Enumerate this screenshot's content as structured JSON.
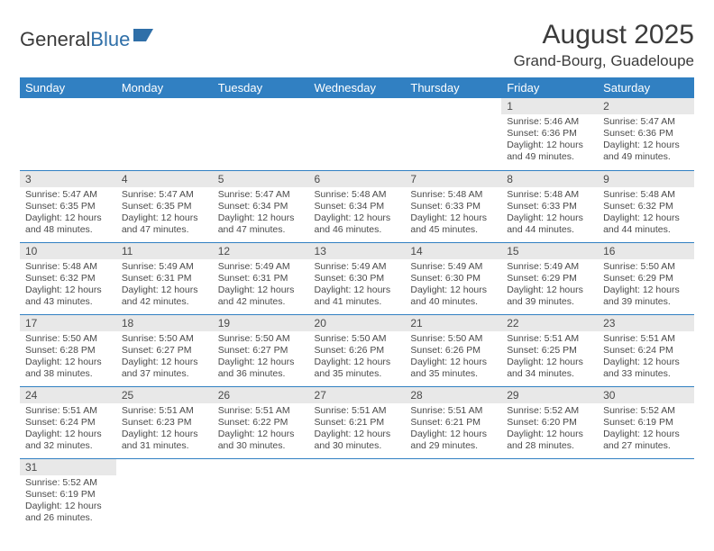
{
  "logo": {
    "text1": "General",
    "text2": "Blue"
  },
  "title": "August 2025",
  "location": "Grand-Bourg, Guadeloupe",
  "colors": {
    "header_bg": "#3180c2",
    "header_text": "#ffffff",
    "daynum_bg": "#e8e8e8",
    "cell_border": "#3180c2",
    "text": "#4a4a4a",
    "logo_blue": "#2f6fa8"
  },
  "columns": [
    "Sunday",
    "Monday",
    "Tuesday",
    "Wednesday",
    "Thursday",
    "Friday",
    "Saturday"
  ],
  "weeks": [
    [
      null,
      null,
      null,
      null,
      null,
      {
        "n": "1",
        "sunrise": "5:46 AM",
        "sunset": "6:36 PM",
        "dl": "12 hours and 49 minutes."
      },
      {
        "n": "2",
        "sunrise": "5:47 AM",
        "sunset": "6:36 PM",
        "dl": "12 hours and 49 minutes."
      }
    ],
    [
      {
        "n": "3",
        "sunrise": "5:47 AM",
        "sunset": "6:35 PM",
        "dl": "12 hours and 48 minutes."
      },
      {
        "n": "4",
        "sunrise": "5:47 AM",
        "sunset": "6:35 PM",
        "dl": "12 hours and 47 minutes."
      },
      {
        "n": "5",
        "sunrise": "5:47 AM",
        "sunset": "6:34 PM",
        "dl": "12 hours and 47 minutes."
      },
      {
        "n": "6",
        "sunrise": "5:48 AM",
        "sunset": "6:34 PM",
        "dl": "12 hours and 46 minutes."
      },
      {
        "n": "7",
        "sunrise": "5:48 AM",
        "sunset": "6:33 PM",
        "dl": "12 hours and 45 minutes."
      },
      {
        "n": "8",
        "sunrise": "5:48 AM",
        "sunset": "6:33 PM",
        "dl": "12 hours and 44 minutes."
      },
      {
        "n": "9",
        "sunrise": "5:48 AM",
        "sunset": "6:32 PM",
        "dl": "12 hours and 44 minutes."
      }
    ],
    [
      {
        "n": "10",
        "sunrise": "5:48 AM",
        "sunset": "6:32 PM",
        "dl": "12 hours and 43 minutes."
      },
      {
        "n": "11",
        "sunrise": "5:49 AM",
        "sunset": "6:31 PM",
        "dl": "12 hours and 42 minutes."
      },
      {
        "n": "12",
        "sunrise": "5:49 AM",
        "sunset": "6:31 PM",
        "dl": "12 hours and 42 minutes."
      },
      {
        "n": "13",
        "sunrise": "5:49 AM",
        "sunset": "6:30 PM",
        "dl": "12 hours and 41 minutes."
      },
      {
        "n": "14",
        "sunrise": "5:49 AM",
        "sunset": "6:30 PM",
        "dl": "12 hours and 40 minutes."
      },
      {
        "n": "15",
        "sunrise": "5:49 AM",
        "sunset": "6:29 PM",
        "dl": "12 hours and 39 minutes."
      },
      {
        "n": "16",
        "sunrise": "5:50 AM",
        "sunset": "6:29 PM",
        "dl": "12 hours and 39 minutes."
      }
    ],
    [
      {
        "n": "17",
        "sunrise": "5:50 AM",
        "sunset": "6:28 PM",
        "dl": "12 hours and 38 minutes."
      },
      {
        "n": "18",
        "sunrise": "5:50 AM",
        "sunset": "6:27 PM",
        "dl": "12 hours and 37 minutes."
      },
      {
        "n": "19",
        "sunrise": "5:50 AM",
        "sunset": "6:27 PM",
        "dl": "12 hours and 36 minutes."
      },
      {
        "n": "20",
        "sunrise": "5:50 AM",
        "sunset": "6:26 PM",
        "dl": "12 hours and 35 minutes."
      },
      {
        "n": "21",
        "sunrise": "5:50 AM",
        "sunset": "6:26 PM",
        "dl": "12 hours and 35 minutes."
      },
      {
        "n": "22",
        "sunrise": "5:51 AM",
        "sunset": "6:25 PM",
        "dl": "12 hours and 34 minutes."
      },
      {
        "n": "23",
        "sunrise": "5:51 AM",
        "sunset": "6:24 PM",
        "dl": "12 hours and 33 minutes."
      }
    ],
    [
      {
        "n": "24",
        "sunrise": "5:51 AM",
        "sunset": "6:24 PM",
        "dl": "12 hours and 32 minutes."
      },
      {
        "n": "25",
        "sunrise": "5:51 AM",
        "sunset": "6:23 PM",
        "dl": "12 hours and 31 minutes."
      },
      {
        "n": "26",
        "sunrise": "5:51 AM",
        "sunset": "6:22 PM",
        "dl": "12 hours and 30 minutes."
      },
      {
        "n": "27",
        "sunrise": "5:51 AM",
        "sunset": "6:21 PM",
        "dl": "12 hours and 30 minutes."
      },
      {
        "n": "28",
        "sunrise": "5:51 AM",
        "sunset": "6:21 PM",
        "dl": "12 hours and 29 minutes."
      },
      {
        "n": "29",
        "sunrise": "5:52 AM",
        "sunset": "6:20 PM",
        "dl": "12 hours and 28 minutes."
      },
      {
        "n": "30",
        "sunrise": "5:52 AM",
        "sunset": "6:19 PM",
        "dl": "12 hours and 27 minutes."
      }
    ],
    [
      {
        "n": "31",
        "sunrise": "5:52 AM",
        "sunset": "6:19 PM",
        "dl": "12 hours and 26 minutes."
      },
      null,
      null,
      null,
      null,
      null,
      null
    ]
  ],
  "labels": {
    "sunrise": "Sunrise:",
    "sunset": "Sunset:",
    "daylight": "Daylight:"
  }
}
